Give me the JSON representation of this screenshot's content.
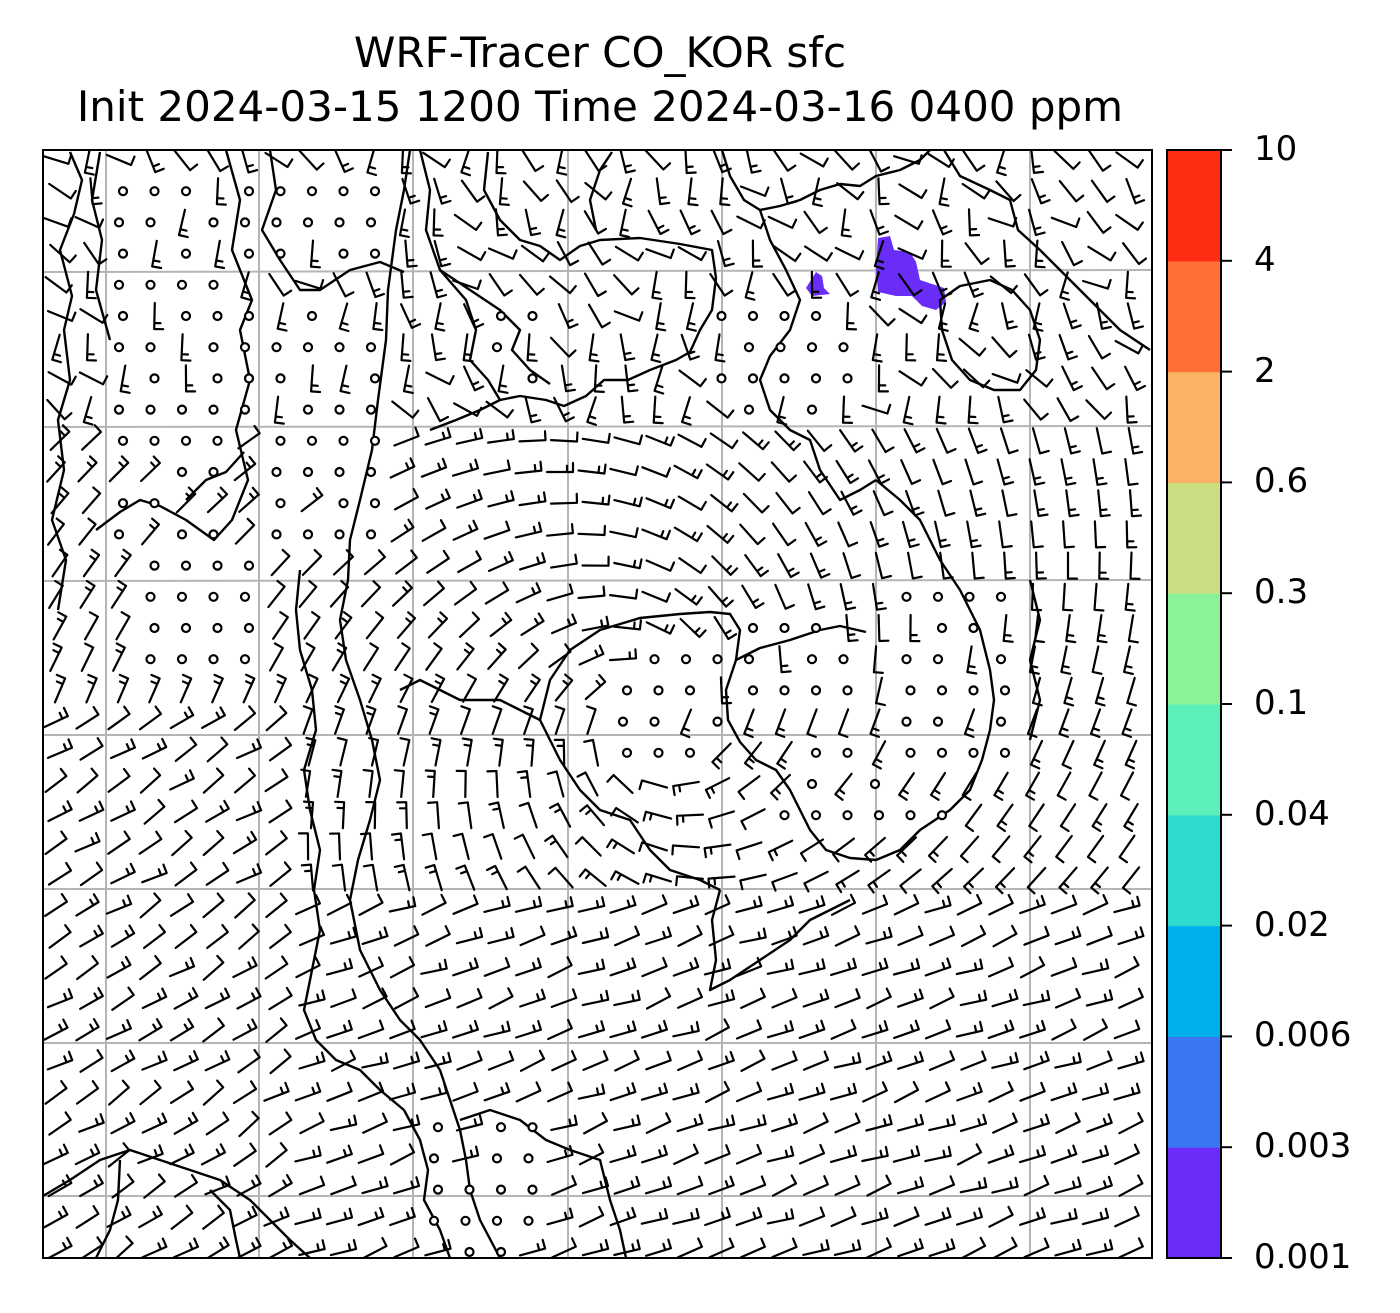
{
  "title": {
    "line1": "WRF-Tracer CO_KOR sfc",
    "line2": "Init 2024-03-15 1200 Time 2024-03-16 0400 ppm"
  },
  "colorbar": {
    "ticks": [
      "0.001",
      "0.003",
      "0.006",
      "0.02",
      "0.04",
      "0.1",
      "0.3",
      "0.6",
      "2",
      "4",
      "10"
    ],
    "colors": [
      "#6a2cf7",
      "#3a75f2",
      "#00b0ea",
      "#2fdacf",
      "#5af0b8",
      "#8af39a",
      "#c9df82",
      "#fbb264",
      "#ff7037",
      "#fe2d14"
    ]
  },
  "map": {
    "grid": "on",
    "wind_barbs": "present",
    "coastlines": "present",
    "tracer_patch_color": "#6a2cf7"
  }
}
